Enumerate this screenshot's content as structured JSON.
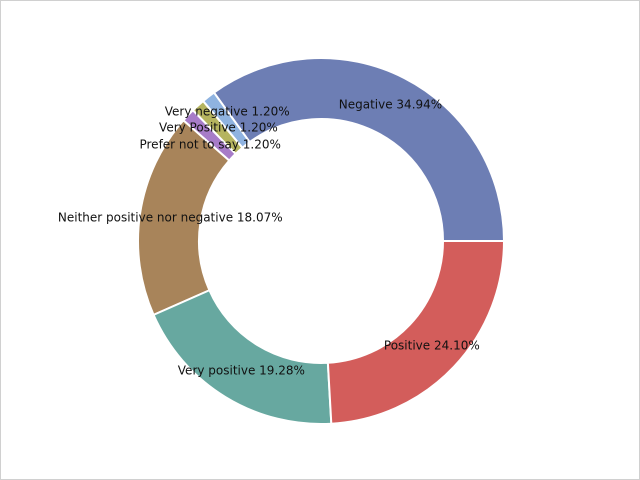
{
  "chart_data": {
    "type": "pie",
    "donut": true,
    "title": "",
    "categories": [
      "Negative",
      "Very negative",
      "Very Positive",
      "Prefer not to say",
      "Neither positive nor negative",
      "Very positive",
      "Positive"
    ],
    "values": [
      34.94,
      1.2,
      1.2,
      1.2,
      18.07,
      19.28,
      24.1
    ],
    "labels": [
      "Negative 34.94%",
      "Very negative 1.20%",
      "Very Positive 1.20%",
      "Prefer not to say 1.20%",
      "Neither positive nor negative 18.07%",
      "Very positive 19.28%",
      "Positive 24.10%"
    ],
    "colors": [
      "#6d7eb4",
      "#8fb3e0",
      "#b5b45f",
      "#a77cc8",
      "#a8845a",
      "#67a8a0",
      "#d35d5b"
    ],
    "legend": "none"
  }
}
